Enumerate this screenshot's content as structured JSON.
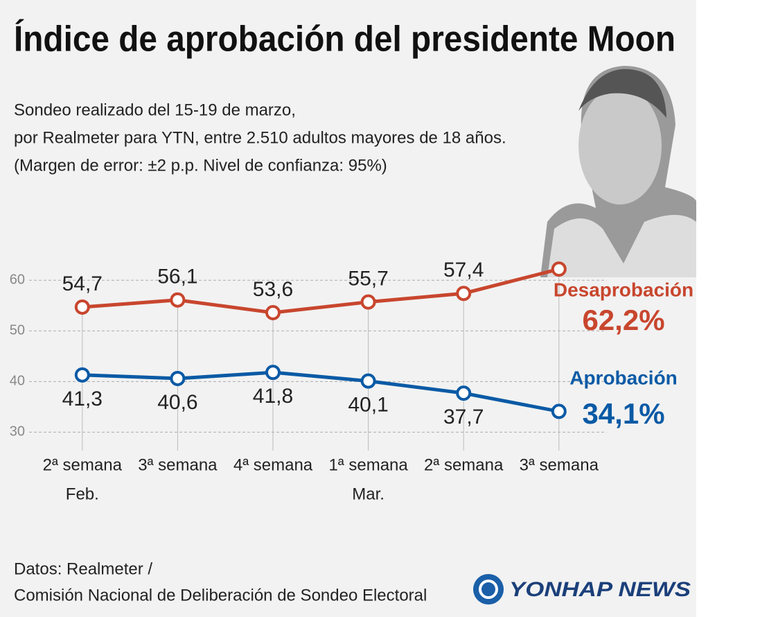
{
  "chart_data": {
    "type": "line",
    "title": "Índice de aprobación del presidente Moon",
    "subtitle": [
      "Sondeo realizado del 15-19 de marzo,",
      "por Realmeter para YTN, entre 2.510 adultos mayores de 18 años.",
      "(Margen de error: ±2 p.p. Nivel de confianza: 95%)"
    ],
    "categories": [
      "2ª semana",
      "3ª semana",
      "4ª semana",
      "1ª semana",
      "2ª semana",
      "3ª semana"
    ],
    "month_labels": [
      "Feb.",
      null,
      null,
      "Mar.",
      null,
      null
    ],
    "series": [
      {
        "name": "Desaprobación",
        "color": "#c8462e",
        "values": [
          54.7,
          56.1,
          53.6,
          55.7,
          57.4,
          62.2
        ],
        "value_labels": [
          "54,7",
          "56,1",
          "53,6",
          "55,7",
          "57,4",
          "62,2%"
        ]
      },
      {
        "name": "Aprobación",
        "color": "#0a5aa5",
        "values": [
          41.3,
          40.6,
          41.8,
          40.1,
          37.7,
          34.1
        ],
        "value_labels": [
          "41,3",
          "40,6",
          "41,8",
          "40,1",
          "37,7",
          "34,1%"
        ]
      }
    ],
    "ylim": [
      28,
      64
    ],
    "yticks": [
      30,
      40,
      50,
      60
    ],
    "grid": true,
    "source": [
      "Datos: Realmeter /",
      "Comisión Nacional de Deliberación de Sondeo Electoral"
    ],
    "logo": "YONHAP NEWS"
  }
}
